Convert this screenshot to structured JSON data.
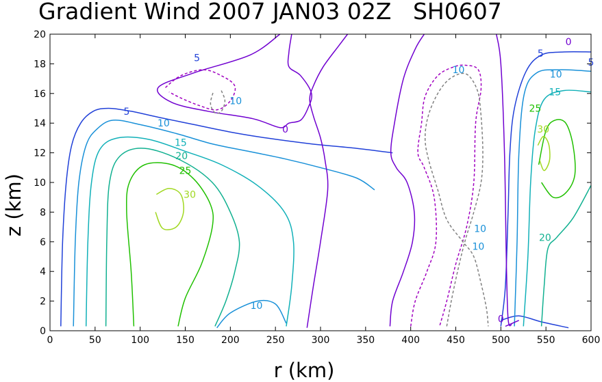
{
  "chart_data": {
    "type": "contour",
    "title": "Gradient Wind 2007 JAN03 02Z   SH0607",
    "xlabel": "r (km)",
    "ylabel": "z (km)",
    "xlim": [
      0,
      600
    ],
    "ylim": [
      0,
      20
    ],
    "x_ticks": [
      "0",
      "50",
      "100",
      "150",
      "200",
      "250",
      "300",
      "350",
      "400",
      "450",
      "500",
      "550",
      "600"
    ],
    "y_ticks": [
      "0",
      "2",
      "4",
      "6",
      "8",
      "10",
      "12",
      "14",
      "16",
      "18",
      "20"
    ],
    "grid": false,
    "units": "m/s",
    "levels": [
      -10,
      -5,
      0,
      5,
      10,
      15,
      20,
      25,
      30
    ],
    "level_colors": {
      "-10": "#808080",
      "-5": "#a000c0",
      "0": "#7000d0",
      "5": "#2040d8",
      "10": "#1890d8",
      "15": "#10b0b8",
      "20": "#10b090",
      "25": "#20c000",
      "30": "#a0d820"
    },
    "contours": [
      {
        "level": 5,
        "points": [
          [
            12,
            0.3
          ],
          [
            14,
            6
          ],
          [
            18,
            10
          ],
          [
            24,
            12.5
          ],
          [
            34,
            14
          ],
          [
            48,
            14.8
          ],
          [
            65,
            15
          ],
          [
            90,
            14.8
          ],
          [
            120,
            14.4
          ],
          [
            160,
            13.9
          ],
          [
            200,
            13.4
          ],
          [
            240,
            13
          ],
          [
            290,
            12.6
          ],
          [
            340,
            12.3
          ],
          [
            380,
            12
          ]
        ]
      },
      {
        "level": 5,
        "points": [
          [
            500,
            0.3
          ],
          [
            505,
            3
          ],
          [
            508,
            8
          ],
          [
            510,
            12
          ],
          [
            515,
            15
          ],
          [
            528,
            17.5
          ],
          [
            545,
            18.6
          ],
          [
            570,
            18.8
          ],
          [
            600,
            18.8
          ]
        ]
      },
      {
        "level": 5,
        "points": [
          [
            500,
            0.7
          ],
          [
            520,
            1
          ],
          [
            545,
            0.6
          ],
          [
            575,
            0.2
          ]
        ]
      },
      {
        "level": 10,
        "points": [
          [
            26,
            0.3
          ],
          [
            28,
            6
          ],
          [
            32,
            10
          ],
          [
            40,
            12.5
          ],
          [
            52,
            13.6
          ],
          [
            70,
            14.2
          ],
          [
            100,
            13.9
          ],
          [
            140,
            13.3
          ],
          [
            180,
            12.6
          ],
          [
            220,
            12.1
          ],
          [
            260,
            11.6
          ],
          [
            300,
            11
          ],
          [
            340,
            10.3
          ],
          [
            360,
            9.5
          ]
        ]
      },
      {
        "level": 10,
        "points": [
          [
            515,
            0.3
          ],
          [
            518,
            6
          ],
          [
            520,
            12
          ],
          [
            526,
            16
          ],
          [
            540,
            17.4
          ],
          [
            565,
            17.6
          ],
          [
            600,
            17.5
          ]
        ]
      },
      {
        "level": 10,
        "points": [
          [
            185,
            0.2
          ],
          [
            200,
            1.2
          ],
          [
            230,
            2
          ],
          [
            250,
            1.8
          ],
          [
            262,
            0.5
          ]
        ]
      },
      {
        "level": 15,
        "points": [
          [
            40,
            0.3
          ],
          [
            42,
            6
          ],
          [
            46,
            10
          ],
          [
            55,
            12.2
          ],
          [
            75,
            13
          ],
          [
            110,
            12.9
          ],
          [
            150,
            12.1
          ],
          [
            190,
            11.2
          ],
          [
            230,
            9.8
          ],
          [
            260,
            8
          ],
          [
            270,
            6
          ],
          [
            268,
            3
          ],
          [
            262,
            0.3
          ]
        ]
      },
      {
        "level": 15,
        "points": [
          [
            525,
            0.3
          ],
          [
            530,
            5
          ],
          [
            533,
            10
          ],
          [
            538,
            13.5
          ],
          [
            548,
            15.6
          ],
          [
            570,
            16.2
          ],
          [
            600,
            16.1
          ]
        ]
      },
      {
        "level": 20,
        "points": [
          [
            62,
            0.3
          ],
          [
            63,
            6
          ],
          [
            66,
            10
          ],
          [
            78,
            11.8
          ],
          [
            105,
            12.3
          ],
          [
            145,
            11.5
          ],
          [
            180,
            10
          ],
          [
            200,
            8
          ],
          [
            210,
            6
          ],
          [
            205,
            4
          ],
          [
            195,
            2
          ],
          [
            183,
            0.3
          ]
        ]
      },
      {
        "level": 20,
        "points": [
          [
            545,
            0.3
          ],
          [
            548,
            3
          ],
          [
            552,
            5.5
          ],
          [
            562,
            6.3
          ],
          [
            580,
            7.6
          ],
          [
            600,
            9.8
          ]
        ]
      },
      {
        "level": 25,
        "points": [
          [
            93,
            0.3
          ],
          [
            90,
            4
          ],
          [
            85,
            8
          ],
          [
            88,
            10
          ],
          [
            105,
            11.2
          ],
          [
            135,
            11.2
          ],
          [
            160,
            10.2
          ],
          [
            178,
            8.5
          ],
          [
            180,
            7
          ],
          [
            168,
            4.5
          ],
          [
            150,
            2.2
          ],
          [
            142,
            0.3
          ]
        ]
      },
      {
        "level": 25,
        "points": [
          [
            542,
            11.2
          ],
          [
            550,
            13.5
          ],
          [
            560,
            14.2
          ],
          [
            572,
            14
          ],
          [
            580,
            12.5
          ],
          [
            582,
            10.5
          ],
          [
            572,
            9.3
          ],
          [
            558,
            9
          ],
          [
            545,
            10
          ]
        ]
      },
      {
        "level": 30,
        "points": [
          [
            118,
            9.2
          ],
          [
            132,
            9.6
          ],
          [
            145,
            9.2
          ],
          [
            148,
            8
          ],
          [
            140,
            7
          ],
          [
            125,
            6.9
          ],
          [
            117,
            8
          ]
        ]
      },
      {
        "level": 30,
        "points": [
          [
            541,
            12.5
          ],
          [
            547,
            13.1
          ],
          [
            553,
            12.6
          ],
          [
            554,
            11.5
          ],
          [
            548,
            10.8
          ],
          [
            543,
            11.5
          ]
        ]
      },
      {
        "level": 0,
        "points": [
          [
            255,
            20
          ],
          [
            222,
            18.6
          ],
          [
            160,
            17.4
          ],
          [
            120,
            16.4
          ],
          [
            135,
            15.4
          ],
          [
            175,
            14.8
          ],
          [
            225,
            14.3
          ],
          [
            255,
            13.7
          ],
          [
            265,
            14
          ],
          [
            278,
            14.2
          ],
          [
            286,
            15
          ],
          [
            290,
            16
          ],
          [
            278,
            17.2
          ],
          [
            265,
            17.8
          ],
          [
            265,
            18.8
          ],
          [
            268,
            20
          ]
        ]
      },
      {
        "level": 0,
        "points": [
          [
            285,
            0.2
          ],
          [
            292,
            3
          ],
          [
            300,
            6
          ],
          [
            308,
            9.5
          ],
          [
            305,
            11.5
          ],
          [
            300,
            13
          ],
          [
            292,
            14.5
          ],
          [
            288,
            15.6
          ],
          [
            292,
            16.5
          ],
          [
            303,
            17.8
          ],
          [
            320,
            19.2
          ],
          [
            330,
            20
          ]
        ]
      },
      {
        "level": 0,
        "points": [
          [
            377,
            0.3
          ],
          [
            380,
            2
          ],
          [
            392,
            4
          ],
          [
            402,
            6
          ],
          [
            404,
            8
          ],
          [
            396,
            10
          ],
          [
            384,
            11
          ],
          [
            378,
            12
          ],
          [
            382,
            14
          ],
          [
            392,
            17
          ],
          [
            405,
            19
          ],
          [
            415,
            20
          ]
        ]
      },
      {
        "level": 0,
        "points": [
          [
            495,
            20
          ],
          [
            500,
            18
          ],
          [
            504,
            12
          ],
          [
            506,
            5
          ],
          [
            508,
            0.8
          ],
          [
            512,
            0.4
          ]
        ]
      },
      {
        "level": 0,
        "points": [
          [
            505,
            0.3
          ],
          [
            520,
            0.7
          ]
        ]
      },
      {
        "level": -5,
        "points": [
          [
            128,
            16.4
          ],
          [
            145,
            17.2
          ],
          [
            170,
            17.6
          ],
          [
            190,
            17.2
          ],
          [
            205,
            16.5
          ],
          [
            200,
            15.5
          ],
          [
            185,
            14.9
          ],
          [
            165,
            15.2
          ],
          [
            145,
            15.7
          ],
          [
            132,
            16.1
          ]
        ]
      },
      {
        "level": -5,
        "points": [
          [
            400,
            0.3
          ],
          [
            405,
            2
          ],
          [
            418,
            4
          ],
          [
            428,
            6
          ],
          [
            426,
            9
          ],
          [
            415,
            11
          ],
          [
            408,
            12
          ],
          [
            412,
            14
          ],
          [
            416,
            15.8
          ],
          [
            430,
            17.2
          ],
          [
            448,
            17.8
          ],
          [
            462,
            17.9
          ],
          [
            475,
            17.6
          ],
          [
            478,
            16.3
          ],
          [
            472,
            14
          ],
          [
            470,
            10
          ],
          [
            462,
            7
          ],
          [
            450,
            4.5
          ],
          [
            440,
            2
          ],
          [
            432,
            0.3
          ]
        ]
      },
      {
        "level": -10,
        "points": [
          [
            190,
            16.2
          ],
          [
            194,
            15.5
          ],
          [
            190,
            14.8
          ],
          [
            183,
            14.7
          ],
          [
            178,
            15.3
          ],
          [
            181,
            16.1
          ]
        ]
      },
      {
        "level": -10,
        "points": [
          [
            440,
            0.3
          ],
          [
            445,
            2
          ],
          [
            452,
            4
          ],
          [
            460,
            6
          ],
          [
            470,
            8
          ],
          [
            478,
            10
          ],
          [
            480,
            12
          ],
          [
            478,
            14.5
          ],
          [
            474,
            16.2
          ],
          [
            462,
            17.3
          ],
          [
            446,
            17.1
          ],
          [
            432,
            16.2
          ],
          [
            420,
            14.6
          ],
          [
            416,
            13
          ],
          [
            420,
            11.5
          ],
          [
            430,
            9.5
          ],
          [
            440,
            7.5
          ],
          [
            458,
            6
          ],
          [
            470,
            5
          ],
          [
            478,
            3.2
          ],
          [
            484,
            1.5
          ],
          [
            486,
            0.3
          ]
        ]
      }
    ],
    "contour_labels": [
      {
        "text": "0",
        "x": 575,
        "y": 19.5
      },
      {
        "text": "0",
        "x": 261,
        "y": 13.6
      },
      {
        "text": "0",
        "x": 500,
        "y": 0.8
      },
      {
        "text": "5",
        "x": 650,
        "y": 18.1
      },
      {
        "text": "5",
        "x": 163,
        "y": 18.4
      },
      {
        "text": "5",
        "x": 544,
        "y": 18.7
      },
      {
        "text": "5",
        "x": 85,
        "y": 14.8
      },
      {
        "text": "10",
        "x": 561,
        "y": 17.3
      },
      {
        "text": "10",
        "x": 126,
        "y": 14.0
      },
      {
        "text": "10",
        "x": 229,
        "y": 1.7
      },
      {
        "text": "10",
        "x": 477,
        "y": 6.9
      },
      {
        "text": "10",
        "x": 475,
        "y": 5.7
      },
      {
        "text": "10",
        "x": 206,
        "y": 15.5
      },
      {
        "text": "10",
        "x": 453,
        "y": 17.6
      },
      {
        "text": "15",
        "x": 145,
        "y": 12.7
      },
      {
        "text": "15",
        "x": 560,
        "y": 16.1
      },
      {
        "text": "20",
        "x": 146,
        "y": 11.8
      },
      {
        "text": "20",
        "x": 549,
        "y": 6.3
      },
      {
        "text": "25",
        "x": 150,
        "y": 10.8
      },
      {
        "text": "25",
        "x": 538,
        "y": 15.0
      },
      {
        "text": "30",
        "x": 155,
        "y": 9.2
      },
      {
        "text": "30",
        "x": 547,
        "y": 13.6
      }
    ]
  }
}
